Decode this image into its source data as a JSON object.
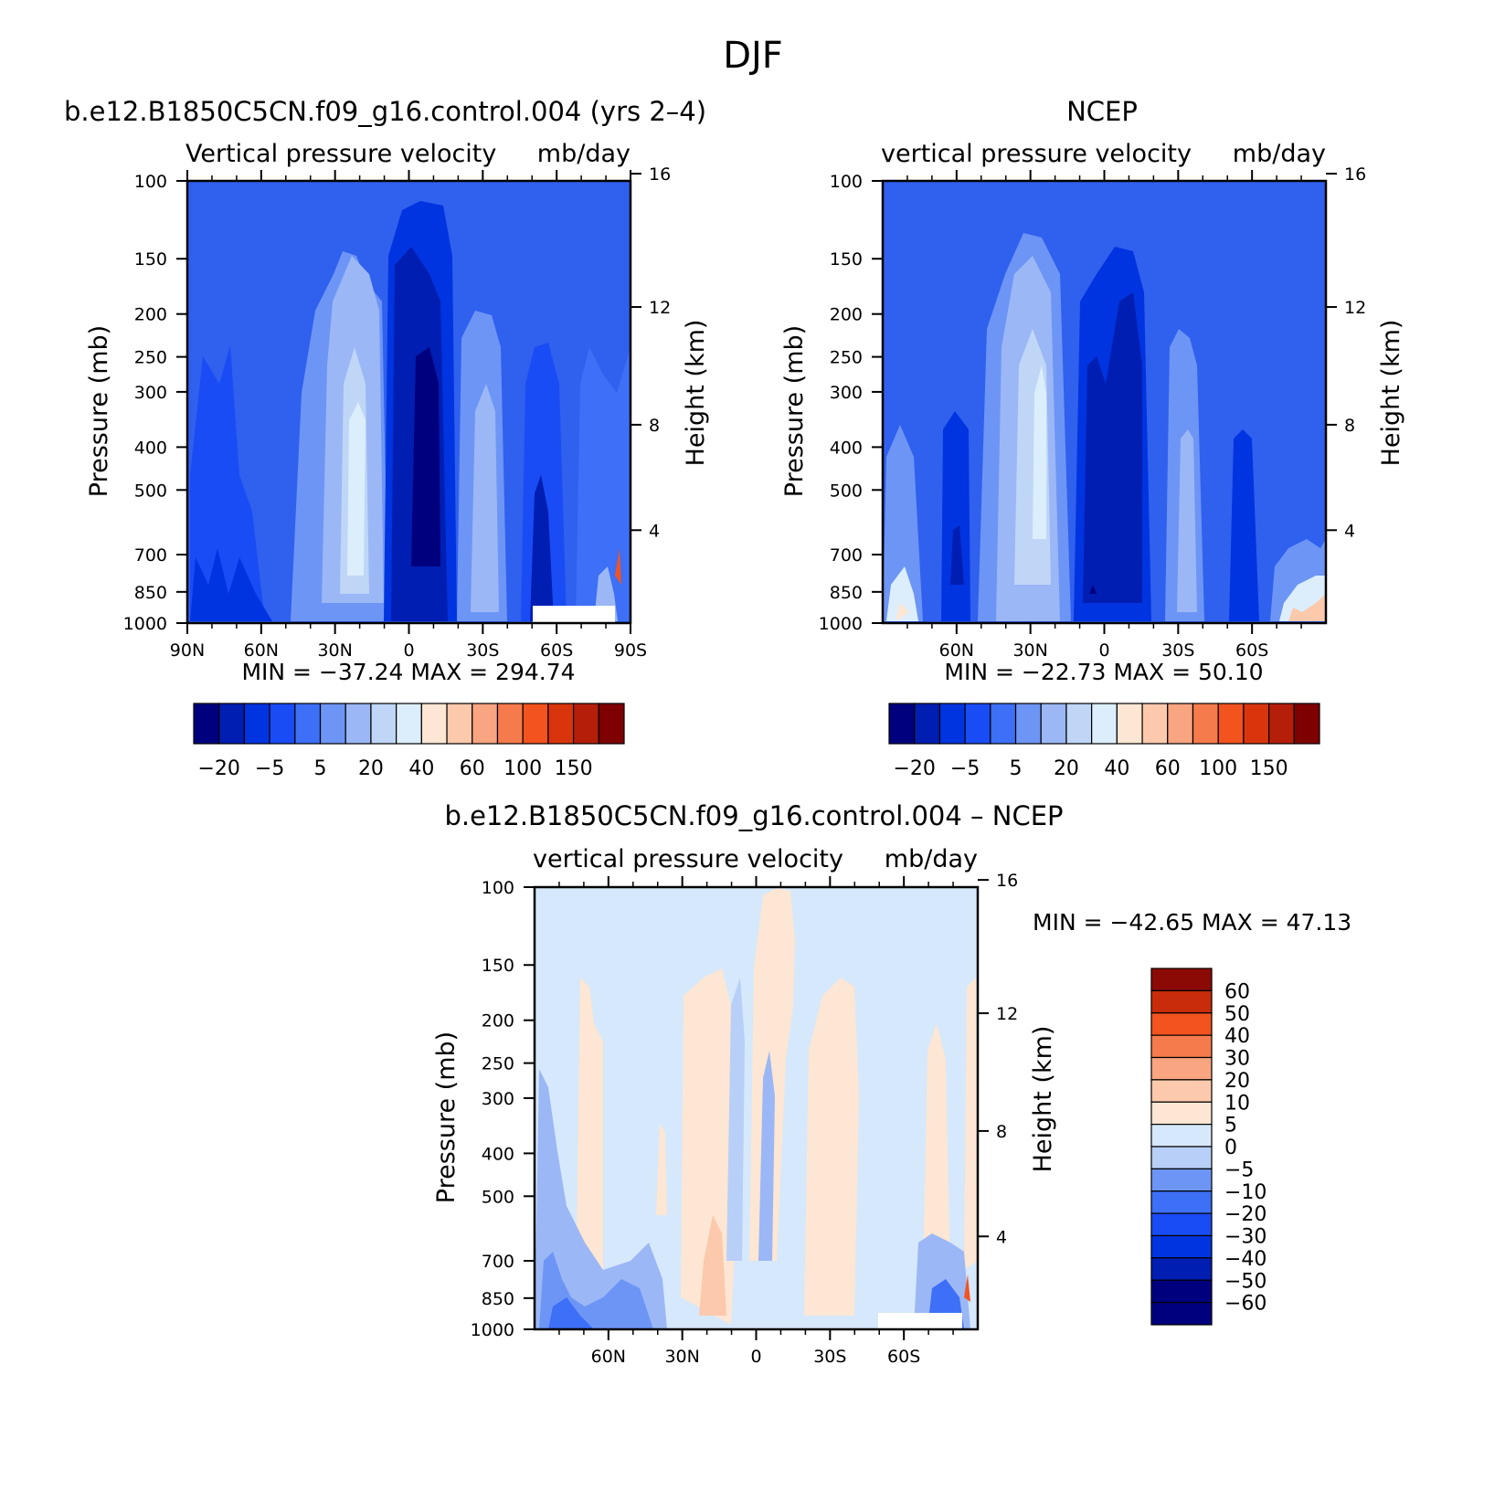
{
  "figure": {
    "title": "DJF"
  },
  "palettes": {
    "abs": [
      "#00007f",
      "#001eb1",
      "#0034e0",
      "#1a4cf5",
      "#3d6ff7",
      "#6d95f5",
      "#9bb7f5",
      "#bfd6f7",
      "#dceefb",
      "#fde6d3",
      "#fcc9ac",
      "#f9a581",
      "#f67b4c",
      "#f2531f",
      "#d9350c",
      "#b51f0a",
      "#7f0000"
    ],
    "diff": [
      "#00007f",
      "#001eb1",
      "#0034e0",
      "#1a4cf5",
      "#3d6ff7",
      "#6d95f5",
      "#b8cff7",
      "#d6e8fb",
      "#fde6d3",
      "#fcc9ac",
      "#f9a581",
      "#f67b4c",
      "#f2531f",
      "#c82c0a",
      "#8c0a06"
    ]
  },
  "chart_data": [
    {
      "type": "heatmap",
      "title": "b.e12.B1850C5CN.f09_g16.control.004 (yrs 2–4)",
      "subtitle_left": "Vertical pressure velocity",
      "subtitle_right": "mb/day",
      "ylabel": "Pressure (mb)",
      "ylabel_right": "Height (km)",
      "x_ticks": [
        "90N",
        "60N",
        "30N",
        "0",
        "30S",
        "60S",
        "90S"
      ],
      "x_range": [
        90,
        -90
      ],
      "y_ticks": [
        "100",
        "150",
        "200",
        "250",
        "300",
        "400",
        "500",
        "700",
        "850",
        "1000"
      ],
      "y_range": [
        100,
        1000
      ],
      "y_scale": "log",
      "right_ticks": [
        "16",
        "12",
        "8",
        "4"
      ],
      "min_max": "MIN =  −37.24   MAX =  294.74",
      "colorbar": {
        "orientation": "horizontal",
        "labels": [
          "−20",
          "−5",
          "5",
          "20",
          "40",
          "60",
          "100",
          "150"
        ]
      },
      "contours": [
        {
          "lat_range": [
            85,
            58
          ],
          "p_range": [
            230,
            1000
          ],
          "level": 5,
          "description": "dark-blue descending columns in NH high latitudes"
        },
        {
          "lat_range": [
            36,
            18
          ],
          "p_range": [
            145,
            990
          ],
          "level": 7,
          "description": "light-blue subsidence zone ~25N"
        },
        {
          "lat_range": [
            7,
            -15
          ],
          "p_range": [
            150,
            1000
          ],
          "level": 0,
          "description": "deep convective ascent near equator"
        },
        {
          "lat_range": [
            -20,
            -35
          ],
          "p_range": [
            190,
            1000
          ],
          "level": 6,
          "description": "subsidence zone ~30S"
        },
        {
          "lat_range": [
            -40,
            -60
          ],
          "p_range": [
            240,
            1000
          ],
          "level": 2,
          "description": "ascent SH mid latitudes"
        }
      ]
    },
    {
      "type": "heatmap",
      "title": "NCEP",
      "subtitle_left": "vertical pressure velocity",
      "subtitle_right": "mb/day",
      "ylabel": "Pressure (mb)",
      "ylabel_right": "Height (km)",
      "x_ticks": [
        "60N",
        "30N",
        "0",
        "30S",
        "60S"
      ],
      "x_range": [
        90,
        -90
      ],
      "y_ticks": [
        "100",
        "150",
        "200",
        "250",
        "300",
        "400",
        "500",
        "700",
        "850",
        "1000"
      ],
      "y_range": [
        100,
        1000
      ],
      "y_scale": "log",
      "right_ticks": [
        "16",
        "12",
        "8",
        "4"
      ],
      "min_max": "MIN =  −22.73   MAX =   50.10",
      "colorbar": {
        "orientation": "horizontal",
        "labels": [
          "−20",
          "−5",
          "5",
          "20",
          "40",
          "60",
          "100",
          "150"
        ]
      }
    },
    {
      "type": "heatmap",
      "title": "b.e12.B1850C5CN.f09_g16.control.004 – NCEP",
      "subtitle_left": "vertical pressure velocity",
      "subtitle_right": "mb/day",
      "ylabel": "Pressure (mb)",
      "ylabel_right": "Height (km)",
      "x_ticks": [
        "60N",
        "30N",
        "0",
        "30S",
        "60S"
      ],
      "x_range": [
        90,
        -90
      ],
      "y_ticks": [
        "100",
        "150",
        "200",
        "250",
        "300",
        "400",
        "500",
        "700",
        "850",
        "1000"
      ],
      "y_range": [
        100,
        1000
      ],
      "y_scale": "log",
      "right_ticks": [
        "16",
        "12",
        "8",
        "4"
      ],
      "min_max": "MIN =  −42.65    MAX =   47.13",
      "colorbar": {
        "orientation": "vertical",
        "labels": [
          "60",
          "50",
          "40",
          "30",
          "20",
          "10",
          "5",
          "0",
          "−5",
          "−10",
          "−20",
          "−30",
          "−40",
          "−50",
          "−60"
        ]
      }
    }
  ]
}
